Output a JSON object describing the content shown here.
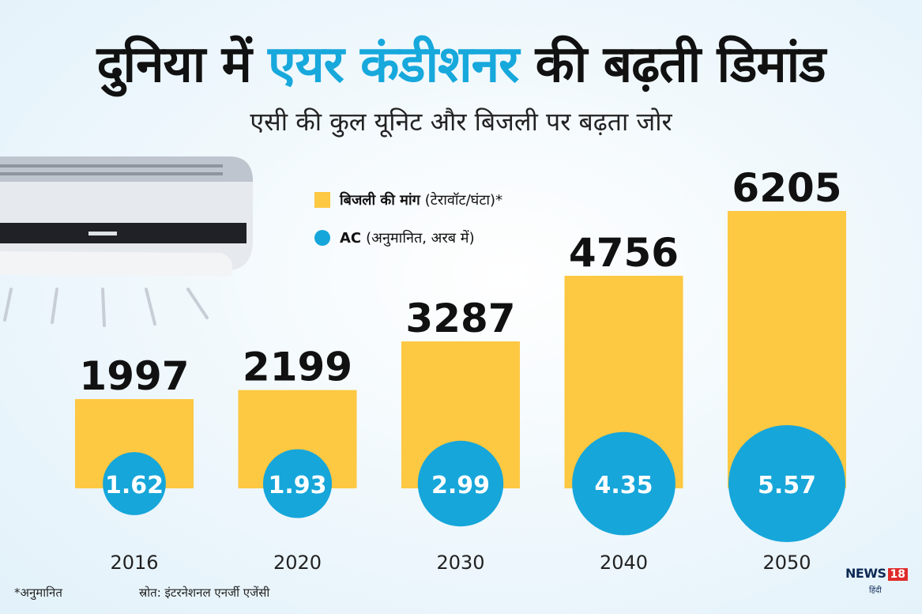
{
  "header": {
    "title_part1": "दुनिया में",
    "title_highlight": "एयर कंडीशनर",
    "title_part2": "की बढ़ती डिमांड",
    "subtitle": "एसी की कुल यूनिट और बिजली पर बढ़ता जोर"
  },
  "legend": {
    "bar_label": "बिजली की मांग",
    "bar_unit": "(टेरावॉट/घंटा)*",
    "dot_label": "AC",
    "dot_unit": "(अनुमानित, अरब में)"
  },
  "colors": {
    "bar": "#fdc842",
    "circle": "#16a6da",
    "highlight": "#17a8dc",
    "text": "#111111"
  },
  "icons": {
    "illustration": "air-conditioner-icon",
    "brand_logo": "news18-logo-icon"
  },
  "chart_data": {
    "type": "bar",
    "categories": [
      "2016",
      "2020",
      "2030",
      "2040",
      "2050"
    ],
    "series": [
      {
        "name": "बिजली की मांग (टेरावॉट/घंटा)*",
        "values": [
          1997,
          2199,
          3287,
          4756,
          6205
        ]
      },
      {
        "name": "AC (अनुमानित, अरब में)",
        "values": [
          1.62,
          1.93,
          2.99,
          4.35,
          5.57
        ]
      }
    ],
    "data_labels_bar": [
      "1997",
      "2199",
      "3287",
      "4756",
      "6205"
    ],
    "data_labels_circle": [
      "1.62",
      "1.93",
      "2.99",
      "4.35",
      "5.57"
    ],
    "ylim": [
      0,
      7000
    ],
    "grid": false,
    "legend_position": "top-center"
  },
  "footer": {
    "footnote": "*अनुमानित",
    "source": "स्रोत: इंटरनेशनल एनर्जी एजेंसी",
    "logo_word": "NEWS",
    "logo_num": "18",
    "logo_sub": "हिंदी"
  }
}
